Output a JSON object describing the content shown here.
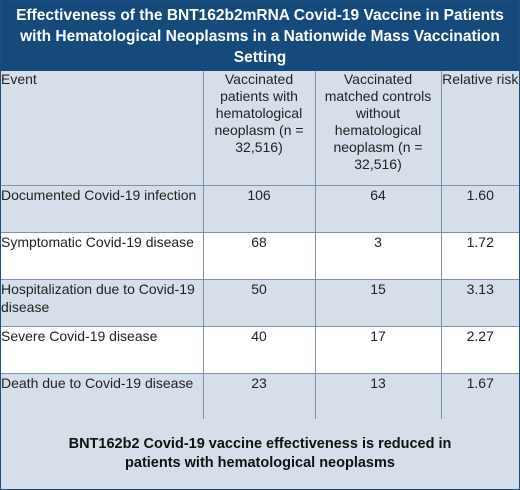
{
  "header": {
    "title": "Effectiveness of the BNT162b2mRNA Covid-19 Vaccine in Patients with Hematological Neoplasms in a Nationwide Mass Vaccination Setting"
  },
  "table": {
    "columns": [
      "Event",
      "Vaccinated patients with hematological neoplasm (n = 32,516)",
      "Vaccinated matched controls without hematological neoplasm (n = 32,516)",
      "Relative risk"
    ],
    "rows": [
      {
        "event": "Documented Covid-19 infection",
        "patients": "106",
        "controls": "64",
        "rr": "1.60"
      },
      {
        "event": "Symptomatic Covid-19 disease",
        "patients": "68",
        "controls": "3",
        "rr": "1.72"
      },
      {
        "event": "Hospitalization due to Covid-19 disease",
        "patients": "50",
        "controls": "15",
        "rr": "3.13"
      },
      {
        "event": "Severe Covid-19 disease",
        "patients": "40",
        "controls": "17",
        "rr": "2.27"
      },
      {
        "event": "Death due to Covid-19 disease",
        "patients": "23",
        "controls": "13",
        "rr": "1.67"
      }
    ]
  },
  "footer": {
    "text": "BNT162b2 Covid-19 vaccine effectiveness is reduced in patients with hematological neoplasms"
  },
  "colors": {
    "header_bg": "#174a7c",
    "band_bg": "#d6dfe9",
    "grid_line": "#7b93ad"
  }
}
